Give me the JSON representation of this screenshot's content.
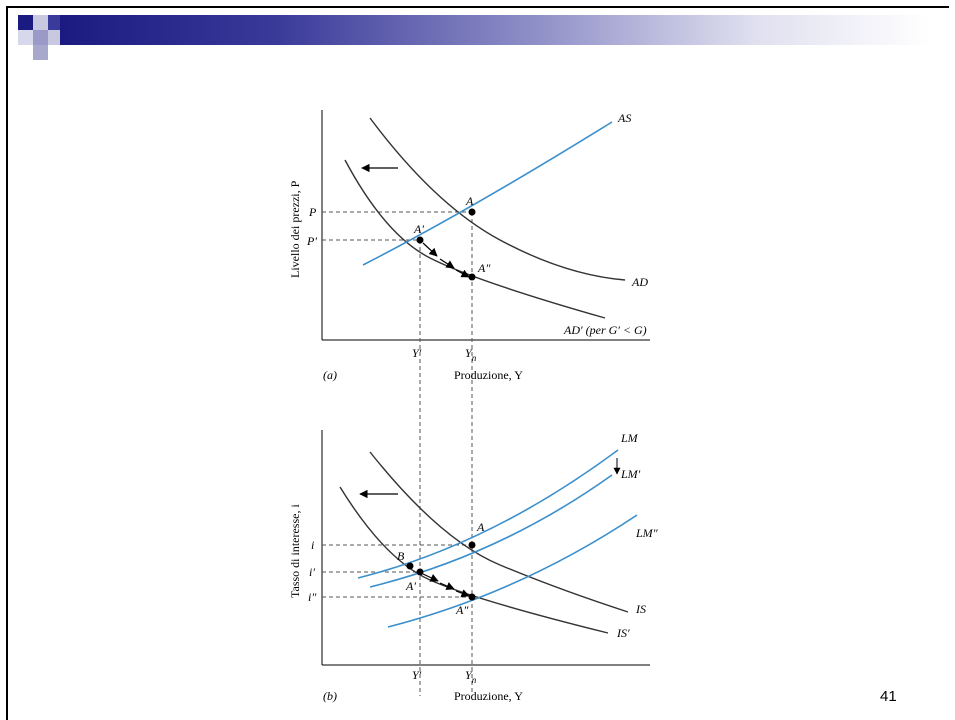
{
  "slide": {
    "page_number": "41",
    "colors": {
      "demand_curves": "#333333",
      "supply_curves": "#3b8fcc",
      "banner_start": "#1a1a80"
    }
  },
  "panel_a": {
    "y_axis_label": "Livello dei prezzi, P",
    "x_axis_label": "Produzione, Y",
    "panel_label": "(a)",
    "curves": {
      "as": "AS",
      "ad": "AD",
      "ad_shifted": "AD′ (per G′ < G)"
    },
    "points": {
      "a": "A",
      "a_prime": "A′",
      "a_double": "A″"
    },
    "y_ticks": {
      "p": "P",
      "p_prime": "P′"
    },
    "x_ticks": {
      "y_prime": "Y′",
      "y_n": "Y",
      "y_n_sub": "n"
    }
  },
  "panel_b": {
    "y_axis_label": "Tasso di interesse, i",
    "x_axis_label": "Produzione, Y",
    "panel_label": "(b)",
    "curves": {
      "lm": "LM",
      "lm_prime": "LM′",
      "lm_double": "LM″",
      "is": "IS",
      "is_prime": "IS′"
    },
    "points": {
      "a": "A",
      "b": "B",
      "a_prime": "A′",
      "a_double": "A″"
    },
    "y_ticks": {
      "i": "i",
      "i_prime": "i′",
      "i_double": "i″"
    },
    "x_ticks": {
      "y_prime": "Y′",
      "y_n": "Y",
      "y_n_sub": "n"
    }
  }
}
